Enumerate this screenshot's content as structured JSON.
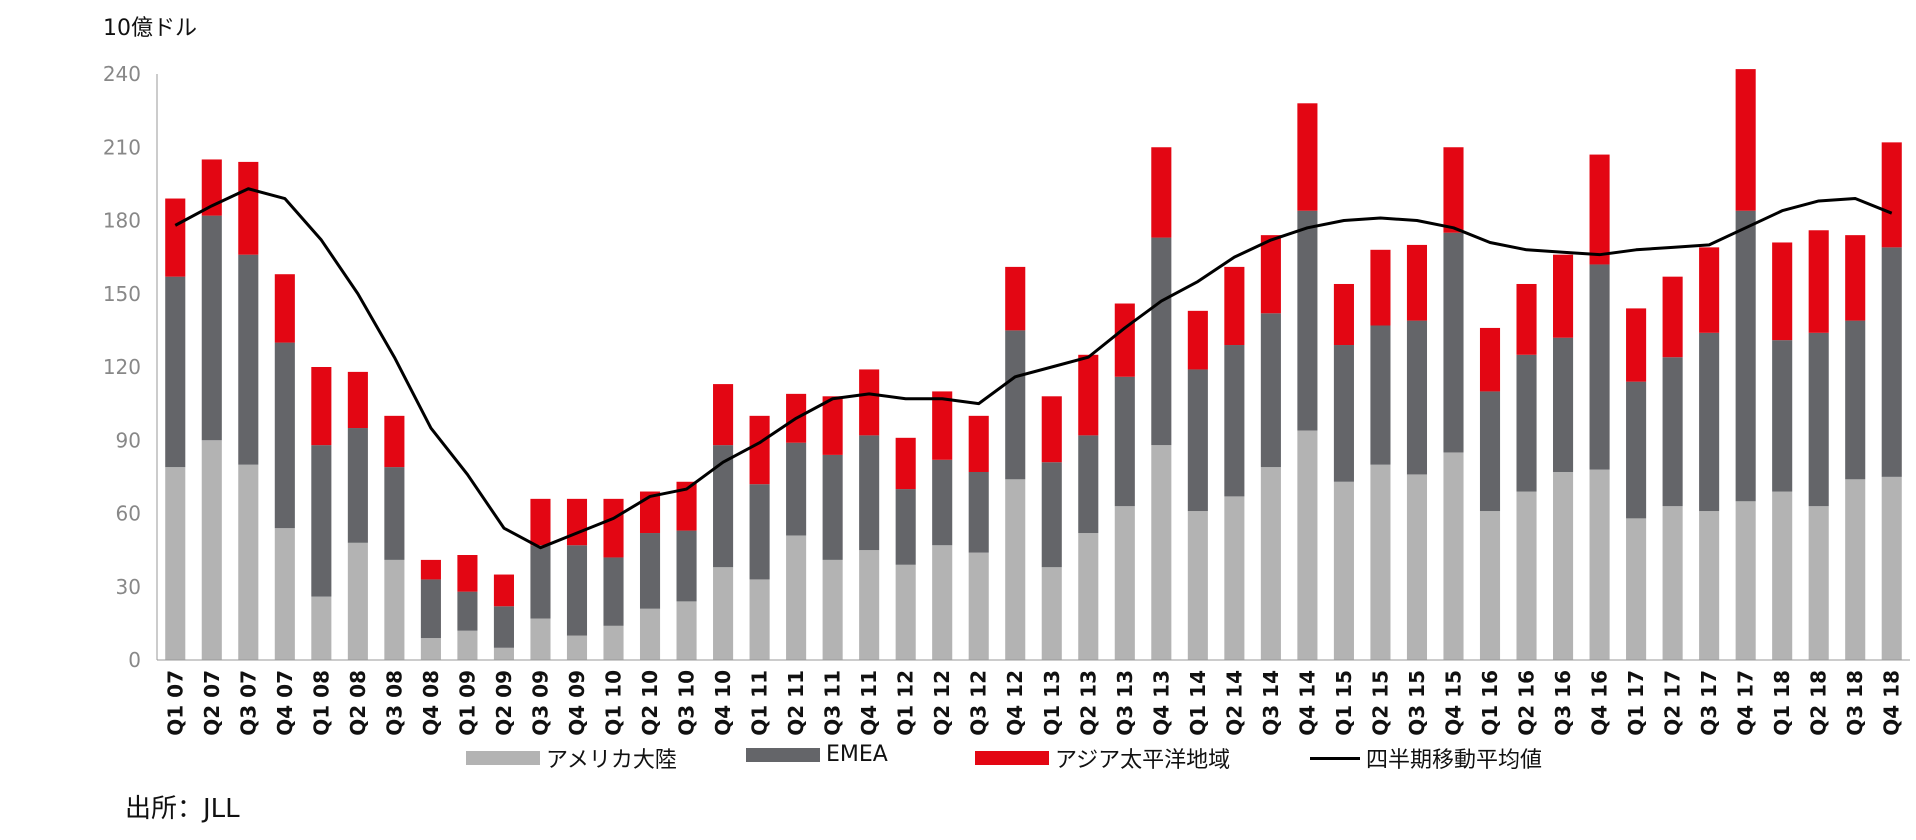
{
  "chart_data": {
    "type": "bar",
    "stacked": true,
    "unit_label": "10億ドル",
    "source": "出所：JLL",
    "ylim": [
      0,
      240
    ],
    "yticks": [
      0,
      30,
      60,
      90,
      120,
      150,
      180,
      210,
      240
    ],
    "categories": [
      "Q1 07",
      "Q2 07",
      "Q3 07",
      "Q4 07",
      "Q1 08",
      "Q2 08",
      "Q3 08",
      "Q4 08",
      "Q1 09",
      "Q2 09",
      "Q3 09",
      "Q4 09",
      "Q1 10",
      "Q2 10",
      "Q3 10",
      "Q4 10",
      "Q1 11",
      "Q2 11",
      "Q3 11",
      "Q4 11",
      "Q1 12",
      "Q2 12",
      "Q3 12",
      "Q4 12",
      "Q1 13",
      "Q2 13",
      "Q3 13",
      "Q4 13",
      "Q1 14",
      "Q2 14",
      "Q3 14",
      "Q4 14",
      "Q1 15",
      "Q2 15",
      "Q3 15",
      "Q4 15",
      "Q1 16",
      "Q2 16",
      "Q3 16",
      "Q4 16",
      "Q1 17",
      "Q2 17",
      "Q3 17",
      "Q4 17",
      "Q1 18",
      "Q2 18",
      "Q3 18",
      "Q4 18"
    ],
    "series": [
      {
        "name": "アメリカ大陸",
        "color": "#b3b3b3",
        "kind": "bar",
        "values": [
          79,
          90,
          80,
          54,
          26,
          48,
          41,
          9,
          12,
          5,
          17,
          10,
          14,
          21,
          24,
          38,
          33,
          51,
          41,
          45,
          39,
          47,
          44,
          74,
          38,
          52,
          63,
          88,
          61,
          67,
          79,
          94,
          73,
          80,
          76,
          85,
          61,
          69,
          77,
          78,
          58,
          63,
          61,
          65,
          69,
          63,
          74,
          75
        ]
      },
      {
        "name": "EMEA",
        "color": "#646569",
        "kind": "bar",
        "values": [
          78,
          92,
          86,
          76,
          62,
          47,
          38,
          24,
          16,
          17,
          30,
          37,
          28,
          31,
          29,
          50,
          39,
          38,
          43,
          47,
          31,
          35,
          33,
          61,
          43,
          40,
          53,
          85,
          58,
          62,
          63,
          90,
          56,
          57,
          63,
          90,
          49,
          56,
          55,
          84,
          56,
          61,
          73,
          119,
          62,
          71,
          65,
          94
        ]
      },
      {
        "name": "アジア太平洋地域",
        "color": "#e30613",
        "kind": "bar",
        "values": [
          32,
          23,
          38,
          28,
          32,
          23,
          21,
          8,
          15,
          13,
          19,
          19,
          24,
          17,
          20,
          25,
          28,
          20,
          24,
          27,
          21,
          28,
          23,
          26,
          27,
          33,
          30,
          37,
          24,
          32,
          32,
          44,
          25,
          31,
          31,
          35,
          26,
          29,
          34,
          45,
          30,
          33,
          35,
          58,
          40,
          42,
          35,
          43
        ]
      },
      {
        "name": "四半期移動平均値",
        "color": "#000000",
        "kind": "line",
        "values": [
          178,
          186,
          193,
          189,
          172,
          150,
          124,
          95,
          76,
          54,
          46,
          52,
          58,
          67,
          70,
          81,
          89,
          99,
          107,
          109,
          107,
          107,
          105,
          116,
          120,
          124,
          136,
          147,
          155,
          165,
          172,
          177,
          180,
          181,
          180,
          177,
          171,
          168,
          167,
          166,
          168,
          169,
          170,
          177,
          184,
          188,
          189,
          183
        ]
      }
    ]
  }
}
